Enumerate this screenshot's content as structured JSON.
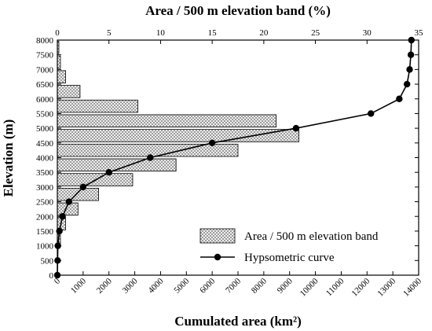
{
  "chart_data": {
    "type": "bar",
    "top_axis": {
      "label": "Area / 500 m elevation band (%)",
      "range": [
        0,
        35
      ],
      "ticks": [
        "0",
        "5",
        "10",
        "15",
        "20",
        "25",
        "30",
        "35"
      ]
    },
    "bottom_axis": {
      "label": "Cumulated area (km²)",
      "range": [
        0,
        14000
      ],
      "ticks": [
        "0",
        "1000",
        "2000",
        "3000",
        "4000",
        "5000",
        "6000",
        "7000",
        "8000",
        "9000",
        "10000",
        "11000",
        "12000",
        "13000",
        "14000"
      ]
    },
    "y_axis": {
      "label": "Elevation (m)",
      "range": [
        0,
        8000
      ],
      "ticks": [
        "0",
        "500",
        "1000",
        "1500",
        "2000",
        "2500",
        "3000",
        "3500",
        "4000",
        "4500",
        "5000",
        "5500",
        "6000",
        "6500",
        "7000",
        "7500",
        "8000"
      ]
    },
    "series": [
      {
        "name": "Area / 500 m elevation band",
        "type": "bar",
        "orientation": "horizontal",
        "pattern": "crosshatch",
        "bands": [
          {
            "from": 0,
            "to": 500,
            "value": 0.0
          },
          {
            "from": 500,
            "to": 1000,
            "value": 0.0
          },
          {
            "from": 1000,
            "to": 1500,
            "value": 0.3
          },
          {
            "from": 1500,
            "to": 2000,
            "value": 0.8
          },
          {
            "from": 2000,
            "to": 2500,
            "value": 2.0
          },
          {
            "from": 2500,
            "to": 3000,
            "value": 4.0
          },
          {
            "from": 3000,
            "to": 3500,
            "value": 7.3
          },
          {
            "from": 3500,
            "to": 4000,
            "value": 11.5
          },
          {
            "from": 4000,
            "to": 4500,
            "value": 17.5
          },
          {
            "from": 4500,
            "to": 5000,
            "value": 23.4
          },
          {
            "from": 5000,
            "to": 5500,
            "value": 21.2
          },
          {
            "from": 5500,
            "to": 6000,
            "value": 7.8
          },
          {
            "from": 6000,
            "to": 6500,
            "value": 2.2
          },
          {
            "from": 6500,
            "to": 7000,
            "value": 0.8
          },
          {
            "from": 7000,
            "to": 7500,
            "value": 0.3
          },
          {
            "from": 7500,
            "to": 8000,
            "value": 0.15
          }
        ]
      },
      {
        "name": "Hypsometric curve",
        "type": "line",
        "marker": "circle",
        "points": [
          {
            "x": 0,
            "y": 0
          },
          {
            "x": 10,
            "y": 500
          },
          {
            "x": 20,
            "y": 1000
          },
          {
            "x": 80,
            "y": 1500
          },
          {
            "x": 200,
            "y": 2000
          },
          {
            "x": 450,
            "y": 2500
          },
          {
            "x": 1000,
            "y": 3000
          },
          {
            "x": 2000,
            "y": 3500
          },
          {
            "x": 3600,
            "y": 4000
          },
          {
            "x": 6000,
            "y": 4500
          },
          {
            "x": 9250,
            "y": 5000
          },
          {
            "x": 12150,
            "y": 5500
          },
          {
            "x": 13250,
            "y": 6000
          },
          {
            "x": 13550,
            "y": 6500
          },
          {
            "x": 13650,
            "y": 7000
          },
          {
            "x": 13700,
            "y": 7500
          },
          {
            "x": 13720,
            "y": 8000
          }
        ]
      }
    ],
    "legend": {
      "position": "bottom-right",
      "entries": [
        "Area / 500 m elevation band",
        "Hypsometric curve"
      ]
    },
    "grid": false
  }
}
